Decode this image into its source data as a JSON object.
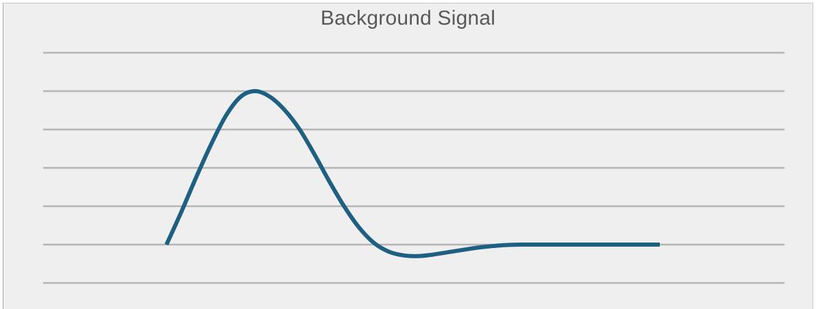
{
  "chart_data": {
    "type": "line",
    "title": "Background Signal",
    "xlabel": "",
    "ylabel": "",
    "xlim": [
      0,
      100
    ],
    "ylim": [
      0,
      6
    ],
    "grid": true,
    "gridline_count": 7,
    "line_color": "#1f5f82",
    "grid_color": "#b4b4b4",
    "background_color": "#efefef",
    "series": [
      {
        "x": [
          0,
          3,
          6,
          9,
          12,
          15,
          18,
          21,
          24,
          27,
          30,
          33,
          36,
          39,
          42,
          45,
          48,
          51,
          54,
          57,
          60,
          63,
          66,
          69,
          72,
          75,
          78,
          81,
          84,
          87,
          90,
          93,
          96,
          100
        ],
        "values": [
          1.0,
          1.85,
          2.75,
          3.6,
          4.35,
          4.85,
          5.0,
          4.85,
          4.5,
          4.0,
          3.35,
          2.65,
          2.0,
          1.45,
          1.05,
          0.82,
          0.72,
          0.7,
          0.74,
          0.8,
          0.86,
          0.92,
          0.96,
          0.99,
          1.0,
          1.0,
          1.0,
          1.0,
          1.0,
          1.0,
          1.0,
          1.0,
          1.0,
          1.0
        ]
      }
    ]
  }
}
